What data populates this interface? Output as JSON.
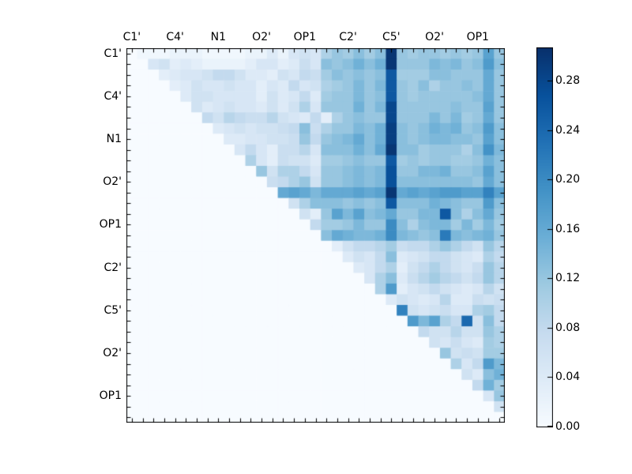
{
  "figure": {
    "background": "#ffffff",
    "frame_color": "#000000",
    "tick_color": "#000000",
    "label_color": "#000000"
  },
  "chart_data": {
    "type": "heatmap",
    "title": "",
    "xlabel": "",
    "ylabel": "",
    "n": 35,
    "axis_labels": [
      "C1'",
      "C4'",
      "N1",
      "O2'",
      "OP1",
      "C2'",
      "C5'",
      "O2'",
      "OP1"
    ],
    "label_indices": [
      0,
      4,
      8,
      12,
      16,
      20,
      24,
      28,
      32
    ],
    "colormap": "Blues",
    "colormap_stops": [
      [
        0.0,
        "#f7fbff"
      ],
      [
        0.125,
        "#deebf7"
      ],
      [
        0.25,
        "#c6dbef"
      ],
      [
        0.375,
        "#9ecae1"
      ],
      [
        0.5,
        "#6baed6"
      ],
      [
        0.625,
        "#4292c6"
      ],
      [
        0.75,
        "#2171b5"
      ],
      [
        0.875,
        "#08519c"
      ],
      [
        1.0,
        "#08306b"
      ]
    ],
    "vmin": 0.0,
    "vmax": 0.307,
    "colorbar": {
      "position": "right",
      "tick_labels": [
        "0.00",
        "0.04",
        "0.08",
        "0.12",
        "0.16",
        "0.20",
        "0.24",
        "0.28"
      ],
      "tick_values": [
        0.0,
        0.04,
        0.08,
        0.12,
        0.16,
        0.2,
        0.24,
        0.28
      ]
    },
    "matrix": [
      [
        0,
        0.01,
        0.01,
        0.01,
        0.02,
        0.02,
        0.02,
        0.01,
        0.01,
        0.01,
        0.01,
        0.02,
        0.02,
        0.04,
        0.02,
        0.05,
        0.06,
        0.05,
        0.1,
        0.12,
        0.11,
        0.13,
        0.11,
        0.13,
        0.3,
        0.12,
        0.11,
        0.12,
        0.12,
        0.11,
        0.12,
        0.11,
        0.12,
        0.17,
        0.12
      ],
      [
        0,
        0,
        0.05,
        0.06,
        0.03,
        0.04,
        0.03,
        0.02,
        0.02,
        0.02,
        0.02,
        0.03,
        0.05,
        0.05,
        0.03,
        0.04,
        0.07,
        0.05,
        0.13,
        0.12,
        0.13,
        0.15,
        0.13,
        0.15,
        0.3,
        0.12,
        0.12,
        0.12,
        0.14,
        0.13,
        0.14,
        0.12,
        0.13,
        0.18,
        0.13
      ],
      [
        0,
        0,
        0,
        0.03,
        0.04,
        0.05,
        0.05,
        0.06,
        0.08,
        0.08,
        0.06,
        0.04,
        0.04,
        0.03,
        0.06,
        0.05,
        0.08,
        0.07,
        0.11,
        0.13,
        0.12,
        0.13,
        0.12,
        0.13,
        0.26,
        0.11,
        0.11,
        0.11,
        0.13,
        0.13,
        0.12,
        0.12,
        0.12,
        0.16,
        0.12
      ],
      [
        0,
        0,
        0,
        0,
        0.03,
        0.04,
        0.06,
        0.05,
        0.05,
        0.06,
        0.05,
        0.05,
        0.03,
        0.05,
        0.04,
        0.08,
        0.05,
        0.06,
        0.1,
        0.11,
        0.12,
        0.14,
        0.12,
        0.14,
        0.26,
        0.12,
        0.11,
        0.13,
        0.1,
        0.12,
        0.12,
        0.13,
        0.12,
        0.16,
        0.12
      ],
      [
        0,
        0,
        0,
        0,
        0,
        0.04,
        0.06,
        0.06,
        0.05,
        0.05,
        0.05,
        0.05,
        0.03,
        0.06,
        0.04,
        0.05,
        0.08,
        0.04,
        0.11,
        0.12,
        0.12,
        0.14,
        0.12,
        0.13,
        0.26,
        0.12,
        0.11,
        0.12,
        0.12,
        0.12,
        0.12,
        0.12,
        0.13,
        0.16,
        0.12
      ],
      [
        0,
        0,
        0,
        0,
        0,
        0,
        0.06,
        0.04,
        0.05,
        0.06,
        0.05,
        0.05,
        0.04,
        0.06,
        0.04,
        0.06,
        0.1,
        0.05,
        0.12,
        0.12,
        0.12,
        0.15,
        0.12,
        0.14,
        0.28,
        0.12,
        0.12,
        0.12,
        0.12,
        0.12,
        0.13,
        0.12,
        0.12,
        0.17,
        0.12
      ],
      [
        0,
        0,
        0,
        0,
        0,
        0,
        0,
        0.08,
        0.06,
        0.09,
        0.08,
        0.07,
        0.07,
        0.09,
        0.06,
        0.05,
        0.04,
        0.08,
        0.03,
        0.1,
        0.12,
        0.13,
        0.12,
        0.12,
        0.28,
        0.12,
        0.12,
        0.12,
        0.14,
        0.12,
        0.14,
        0.11,
        0.12,
        0.16,
        0.12
      ],
      [
        0,
        0,
        0,
        0,
        0,
        0,
        0,
        0,
        0.04,
        0.05,
        0.06,
        0.05,
        0.06,
        0.06,
        0.07,
        0.08,
        0.13,
        0.07,
        0.1,
        0.12,
        0.12,
        0.14,
        0.13,
        0.15,
        0.29,
        0.13,
        0.12,
        0.13,
        0.15,
        0.14,
        0.15,
        0.12,
        0.13,
        0.18,
        0.13
      ],
      [
        0,
        0,
        0,
        0,
        0,
        0,
        0,
        0,
        0,
        0.04,
        0.04,
        0.05,
        0.05,
        0.06,
        0.06,
        0.07,
        0.12,
        0.08,
        0.12,
        0.13,
        0.14,
        0.16,
        0.13,
        0.15,
        0.29,
        0.13,
        0.12,
        0.13,
        0.14,
        0.14,
        0.13,
        0.13,
        0.12,
        0.17,
        0.13
      ],
      [
        0,
        0,
        0,
        0,
        0,
        0,
        0,
        0,
        0,
        0,
        0.05,
        0.08,
        0.05,
        0.03,
        0.07,
        0.07,
        0.09,
        0.05,
        0.13,
        0.13,
        0.13,
        0.15,
        0.13,
        0.16,
        0.3,
        0.13,
        0.13,
        0.11,
        0.12,
        0.12,
        0.12,
        0.1,
        0.13,
        0.19,
        0.14
      ],
      [
        0,
        0,
        0,
        0,
        0,
        0,
        0,
        0,
        0,
        0,
        0,
        0.1,
        0.05,
        0.03,
        0.07,
        0.06,
        0.06,
        0.04,
        0.11,
        0.11,
        0.12,
        0.13,
        0.12,
        0.12,
        0.26,
        0.11,
        0.12,
        0.11,
        0.12,
        0.12,
        0.11,
        0.11,
        0.12,
        0.15,
        0.13
      ],
      [
        0,
        0,
        0,
        0,
        0,
        0,
        0,
        0,
        0,
        0,
        0,
        0,
        0.12,
        0.06,
        0.1,
        0.1,
        0.08,
        0.05,
        0.12,
        0.12,
        0.13,
        0.14,
        0.13,
        0.14,
        0.27,
        0.12,
        0.12,
        0.14,
        0.14,
        0.15,
        0.12,
        0.12,
        0.13,
        0.17,
        0.13
      ],
      [
        0,
        0,
        0,
        0,
        0,
        0,
        0,
        0,
        0,
        0,
        0,
        0,
        0,
        0.07,
        0.08,
        0.1,
        0.12,
        0.06,
        0.12,
        0.12,
        0.13,
        0.14,
        0.13,
        0.14,
        0.27,
        0.13,
        0.13,
        0.13,
        0.13,
        0.13,
        0.13,
        0.13,
        0.12,
        0.16,
        0.13
      ],
      [
        0,
        0,
        0,
        0,
        0,
        0,
        0,
        0,
        0,
        0,
        0,
        0,
        0,
        0,
        0.16,
        0.17,
        0.16,
        0.14,
        0.16,
        0.16,
        0.16,
        0.17,
        0.16,
        0.17,
        0.3,
        0.16,
        0.17,
        0.16,
        0.17,
        0.18,
        0.18,
        0.17,
        0.17,
        0.21,
        0.17
      ],
      [
        0,
        0,
        0,
        0,
        0,
        0,
        0,
        0,
        0,
        0,
        0,
        0,
        0,
        0,
        0,
        0.06,
        0.1,
        0.13,
        0.13,
        0.13,
        0.12,
        0.13,
        0.12,
        0.13,
        0.26,
        0.13,
        0.13,
        0.13,
        0.15,
        0.14,
        0.13,
        0.12,
        0.12,
        0.18,
        0.13
      ],
      [
        0,
        0,
        0,
        0,
        0,
        0,
        0,
        0,
        0,
        0,
        0,
        0,
        0,
        0,
        0,
        0,
        0.06,
        0.03,
        0.12,
        0.17,
        0.14,
        0.17,
        0.13,
        0.14,
        0.16,
        0.12,
        0.12,
        0.14,
        0.14,
        0.26,
        0.13,
        0.1,
        0.13,
        0.16,
        0.12
      ],
      [
        0,
        0,
        0,
        0,
        0,
        0,
        0,
        0,
        0,
        0,
        0,
        0,
        0,
        0,
        0,
        0,
        0,
        0.08,
        0.11,
        0.11,
        0.12,
        0.14,
        0.12,
        0.12,
        0.2,
        0.13,
        0.1,
        0.13,
        0.14,
        0.14,
        0.11,
        0.14,
        0.11,
        0.14,
        0.11
      ],
      [
        0,
        0,
        0,
        0,
        0,
        0,
        0,
        0,
        0,
        0,
        0,
        0,
        0,
        0,
        0,
        0,
        0,
        0,
        0.13,
        0.16,
        0.15,
        0.14,
        0.14,
        0.15,
        0.2,
        0.14,
        0.13,
        0.12,
        0.13,
        0.22,
        0.14,
        0.13,
        0.14,
        0.15,
        0.12
      ],
      [
        0,
        0,
        0,
        0,
        0,
        0,
        0,
        0,
        0,
        0,
        0,
        0,
        0,
        0,
        0,
        0,
        0,
        0,
        0,
        0.03,
        0.06,
        0.08,
        0.08,
        0.09,
        0.11,
        0.07,
        0.08,
        0.08,
        0.1,
        0.12,
        0.1,
        0.08,
        0.06,
        0.12,
        0.09
      ],
      [
        0,
        0,
        0,
        0,
        0,
        0,
        0,
        0,
        0,
        0,
        0,
        0,
        0,
        0,
        0,
        0,
        0,
        0,
        0,
        0,
        0.04,
        0.06,
        0.05,
        0.08,
        0.13,
        0.04,
        0.05,
        0.06,
        0.08,
        0.08,
        0.06,
        0.05,
        0.04,
        0.1,
        0.08
      ],
      [
        0,
        0,
        0,
        0,
        0,
        0,
        0,
        0,
        0,
        0,
        0,
        0,
        0,
        0,
        0,
        0,
        0,
        0,
        0,
        0,
        0,
        0.04,
        0.05,
        0.08,
        0.1,
        0.03,
        0.06,
        0.08,
        0.1,
        0.08,
        0.06,
        0.05,
        0.07,
        0.12,
        0.09
      ],
      [
        0,
        0,
        0,
        0,
        0,
        0,
        0,
        0,
        0,
        0,
        0,
        0,
        0,
        0,
        0,
        0,
        0,
        0,
        0,
        0,
        0,
        0,
        0.05,
        0.1,
        0.13,
        0.04,
        0.07,
        0.09,
        0.11,
        0.09,
        0.08,
        0.06,
        0.08,
        0.12,
        0.09
      ],
      [
        0,
        0,
        0,
        0,
        0,
        0,
        0,
        0,
        0,
        0,
        0,
        0,
        0,
        0,
        0,
        0,
        0,
        0,
        0,
        0,
        0,
        0,
        0,
        0.1,
        0.18,
        0.03,
        0.05,
        0.06,
        0.08,
        0.06,
        0.05,
        0.04,
        0.05,
        0.09,
        0.06
      ],
      [
        0,
        0,
        0,
        0,
        0,
        0,
        0,
        0,
        0,
        0,
        0,
        0,
        0,
        0,
        0,
        0,
        0,
        0,
        0,
        0,
        0,
        0,
        0,
        0,
        0.04,
        0.06,
        0.05,
        0.04,
        0.05,
        0.09,
        0.04,
        0.04,
        0.07,
        0.06,
        0.07
      ],
      [
        0,
        0,
        0,
        0,
        0,
        0,
        0,
        0,
        0,
        0,
        0,
        0,
        0,
        0,
        0,
        0,
        0,
        0,
        0,
        0,
        0,
        0,
        0,
        0,
        0,
        0.21,
        0.06,
        0.05,
        0.06,
        0.07,
        0.05,
        0.05,
        0.1,
        0.11,
        0.08
      ],
      [
        0,
        0,
        0,
        0,
        0,
        0,
        0,
        0,
        0,
        0,
        0,
        0,
        0,
        0,
        0,
        0,
        0,
        0,
        0,
        0,
        0,
        0,
        0,
        0,
        0,
        0,
        0.18,
        0.14,
        0.17,
        0.1,
        0.08,
        0.24,
        0.06,
        0.13,
        0.08
      ],
      [
        0,
        0,
        0,
        0,
        0,
        0,
        0,
        0,
        0,
        0,
        0,
        0,
        0,
        0,
        0,
        0,
        0,
        0,
        0,
        0,
        0,
        0,
        0,
        0,
        0,
        0,
        0,
        0.08,
        0.06,
        0.06,
        0.09,
        0.06,
        0.06,
        0.12,
        0.1
      ],
      [
        0,
        0,
        0,
        0,
        0,
        0,
        0,
        0,
        0,
        0,
        0,
        0,
        0,
        0,
        0,
        0,
        0,
        0,
        0,
        0,
        0,
        0,
        0,
        0,
        0,
        0,
        0,
        0,
        0.06,
        0.05,
        0.07,
        0.05,
        0.04,
        0.11,
        0.1
      ],
      [
        0,
        0,
        0,
        0,
        0,
        0,
        0,
        0,
        0,
        0,
        0,
        0,
        0,
        0,
        0,
        0,
        0,
        0,
        0,
        0,
        0,
        0,
        0,
        0,
        0,
        0,
        0,
        0,
        0,
        0.12,
        0.06,
        0.07,
        0.06,
        0.11,
        0.11
      ],
      [
        0,
        0,
        0,
        0,
        0,
        0,
        0,
        0,
        0,
        0,
        0,
        0,
        0,
        0,
        0,
        0,
        0,
        0,
        0,
        0,
        0,
        0,
        0,
        0,
        0,
        0,
        0,
        0,
        0,
        0,
        0.1,
        0.05,
        0.08,
        0.18,
        0.14
      ],
      [
        0,
        0,
        0,
        0,
        0,
        0,
        0,
        0,
        0,
        0,
        0,
        0,
        0,
        0,
        0,
        0,
        0,
        0,
        0,
        0,
        0,
        0,
        0,
        0,
        0,
        0,
        0,
        0,
        0,
        0,
        0,
        0.06,
        0.04,
        0.13,
        0.15
      ],
      [
        0,
        0,
        0,
        0,
        0,
        0,
        0,
        0,
        0,
        0,
        0,
        0,
        0,
        0,
        0,
        0,
        0,
        0,
        0,
        0,
        0,
        0,
        0,
        0,
        0,
        0,
        0,
        0,
        0,
        0,
        0,
        0,
        0.08,
        0.15,
        0.11
      ],
      [
        0,
        0,
        0,
        0,
        0,
        0,
        0,
        0,
        0,
        0,
        0,
        0,
        0,
        0,
        0,
        0,
        0,
        0,
        0,
        0,
        0,
        0,
        0,
        0,
        0,
        0,
        0,
        0,
        0,
        0,
        0,
        0,
        0,
        0.05,
        0.12
      ],
      [
        0,
        0,
        0,
        0,
        0,
        0,
        0,
        0,
        0,
        0,
        0,
        0,
        0,
        0,
        0,
        0,
        0,
        0,
        0,
        0,
        0,
        0,
        0,
        0,
        0,
        0,
        0,
        0,
        0,
        0,
        0,
        0,
        0,
        0,
        0.06
      ],
      [
        0,
        0,
        0,
        0,
        0,
        0,
        0,
        0,
        0,
        0,
        0,
        0,
        0,
        0,
        0,
        0,
        0,
        0,
        0,
        0,
        0,
        0,
        0,
        0,
        0,
        0,
        0,
        0,
        0,
        0,
        0,
        0,
        0,
        0,
        0
      ]
    ]
  }
}
